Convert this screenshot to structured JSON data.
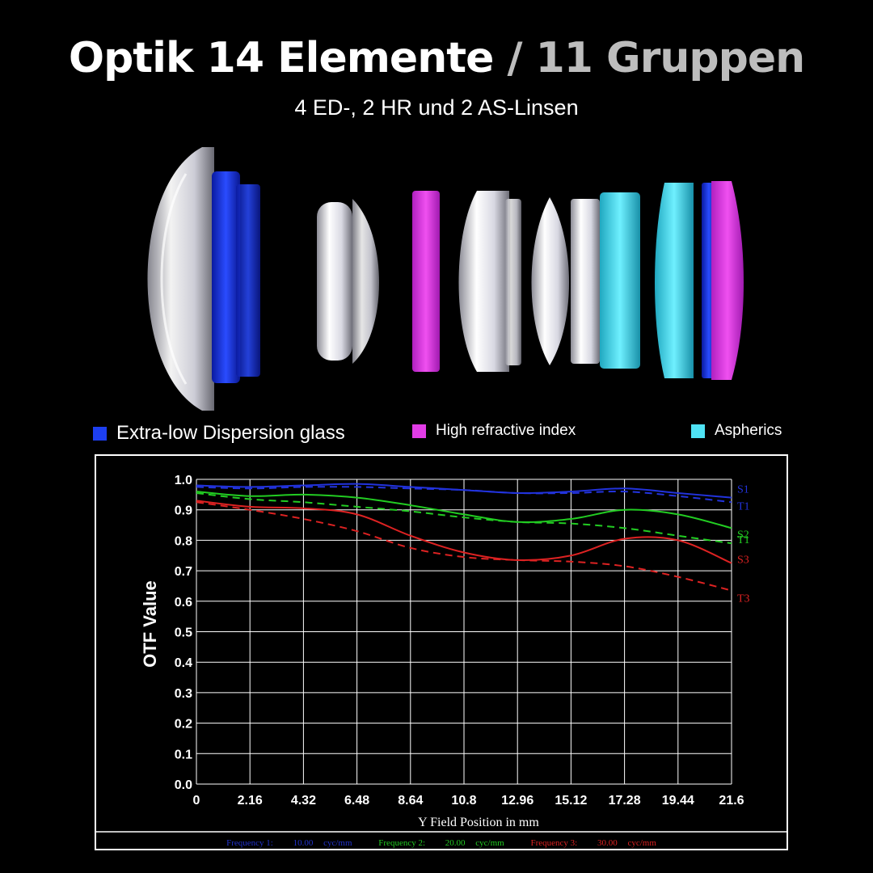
{
  "header": {
    "title_main": "Optik 14 Elemente",
    "title_sep": "/",
    "title_groups": "11 Gruppen",
    "subtitle": "4 ED-, 2 HR und 2 AS-Linsen"
  },
  "legend": [
    {
      "label": "Extra-low Dispersion glass",
      "color": "#1d3ff0"
    },
    {
      "label": "High refractive index",
      "color": "#e23ce6"
    },
    {
      "label": "Aspherics",
      "color": "#4fe3f5"
    }
  ],
  "lens_colors": {
    "clear": "#dcdce6",
    "ed": "#1d3ff0",
    "hr": "#e23ce6",
    "as": "#4fe3f5"
  },
  "chart_data": {
    "type": "line",
    "ylabel": "OTF Value",
    "xlabel": "Y Field Position in mm",
    "xlim": [
      0,
      21.6
    ],
    "ylim": [
      0,
      1.0
    ],
    "x_ticks": [
      "0",
      "2.16",
      "4.32",
      "6.48",
      "8.64",
      "10.8",
      "12.96",
      "15.12",
      "17.28",
      "19.44",
      "21.6"
    ],
    "y_ticks": [
      "0.0",
      "0.1",
      "0.2",
      "0.3",
      "0.4",
      "0.5",
      "0.6",
      "0.7",
      "0.8",
      "0.9",
      "1.0"
    ],
    "grid": true,
    "x": [
      0,
      2.16,
      4.32,
      6.48,
      8.64,
      10.8,
      12.96,
      15.12,
      17.28,
      19.44,
      21.6
    ],
    "series": [
      {
        "name": "S1",
        "color": "#2233dd",
        "dash": false,
        "values": [
          0.98,
          0.975,
          0.98,
          0.985,
          0.975,
          0.965,
          0.955,
          0.96,
          0.97,
          0.955,
          0.94
        ]
      },
      {
        "name": "T1",
        "color": "#2233dd",
        "dash": true,
        "values": [
          0.975,
          0.97,
          0.975,
          0.975,
          0.97,
          0.965,
          0.955,
          0.955,
          0.96,
          0.945,
          0.925
        ]
      },
      {
        "name": "S2",
        "color": "#22cc22",
        "dash": false,
        "values": [
          0.96,
          0.945,
          0.95,
          0.94,
          0.915,
          0.885,
          0.86,
          0.87,
          0.9,
          0.885,
          0.84
        ]
      },
      {
        "name": "T1",
        "color": "#22cc22",
        "dash": true,
        "values": [
          0.955,
          0.935,
          0.925,
          0.91,
          0.895,
          0.875,
          0.86,
          0.855,
          0.84,
          0.815,
          0.79
        ]
      },
      {
        "name": "S3",
        "color": "#dd2222",
        "dash": false,
        "values": [
          0.93,
          0.91,
          0.905,
          0.885,
          0.815,
          0.76,
          0.735,
          0.75,
          0.805,
          0.8,
          0.725
        ]
      },
      {
        "name": "T3",
        "color": "#dd2222",
        "dash": true,
        "values": [
          0.925,
          0.9,
          0.87,
          0.83,
          0.775,
          0.745,
          0.735,
          0.73,
          0.715,
          0.68,
          0.635
        ]
      }
    ],
    "frequencies": [
      {
        "label": "Frequency 1:",
        "value": "10.00",
        "unit": "cyc/mm",
        "color": "#2233cc"
      },
      {
        "label": "Frequency 2:",
        "value": "20.00",
        "unit": "cyc/mm",
        "color": "#22cc22"
      },
      {
        "label": "Frequency 3:",
        "value": "30.00",
        "unit": "cyc/mm",
        "color": "#dd2222"
      }
    ]
  }
}
